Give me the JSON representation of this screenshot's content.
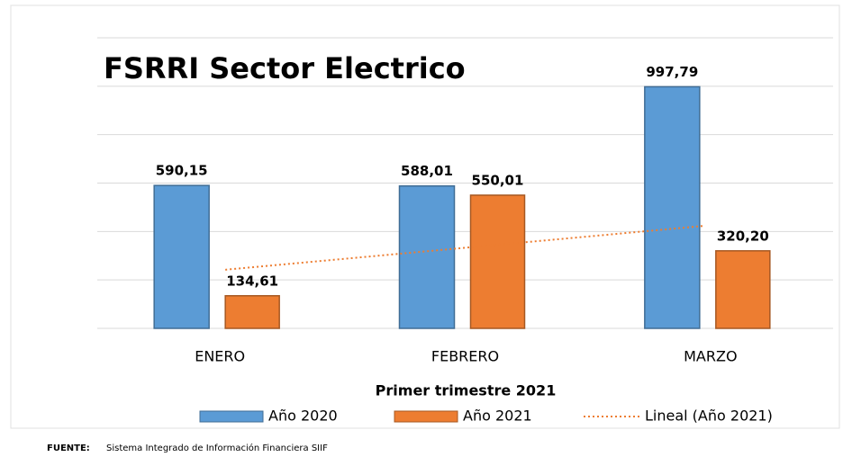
{
  "chart_data": {
    "type": "bar",
    "title": "FSRRI Sector Electrico",
    "x_label": "Primer trimestre 2021",
    "categories": [
      "ENERO",
      "FEBRERO",
      "MARZO"
    ],
    "series": [
      {
        "name": "Año 2020",
        "color": "#5b9bd5",
        "values": [
          590.15,
          588.01,
          997.79
        ],
        "value_labels": [
          "590,15",
          "588,01",
          "997,79"
        ]
      },
      {
        "name": "Año 2021",
        "color": "#ed7d31",
        "values": [
          134.61,
          550.01,
          320.2
        ],
        "value_labels": [
          "134,61",
          "550,01",
          "320,20"
        ]
      }
    ],
    "trendline": {
      "name": "Lineal (Año 2021)",
      "series": 1,
      "color": "#ed7d31"
    },
    "ylim": [
      0,
      1200
    ],
    "yticks": [
      0,
      200,
      400,
      600,
      800,
      1000,
      1200
    ],
    "grid": true,
    "legend": "bottom",
    "source_label": "FUENTE:",
    "source": "Sistema Integrado de Información Financiera SIIF"
  }
}
